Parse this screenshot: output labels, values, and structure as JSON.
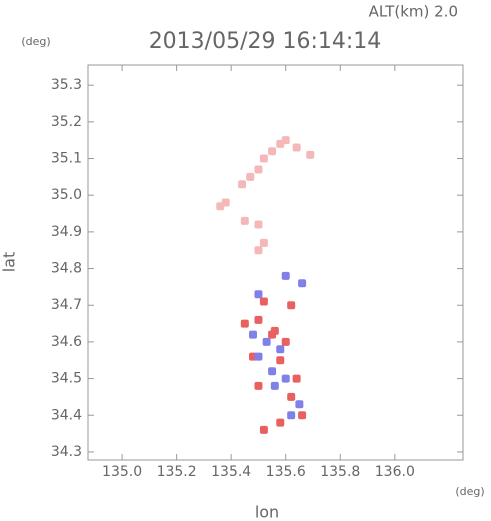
{
  "chart_data": {
    "type": "scatter",
    "title": "2013/05/29 16:14:14",
    "subtitle": "ALT(km) 2.0",
    "x_label": "lon",
    "y_label": "lat",
    "x_unit": "(deg)",
    "y_unit": "(deg)",
    "xlim": [
      134.875,
      136.25
    ],
    "ylim": [
      34.278,
      35.355
    ],
    "xticks": [
      {
        "value": 135,
        "label": "135.0"
      },
      135.2,
      135.4,
      135.6,
      135.8,
      {
        "value": 136,
        "label": "136.0"
      }
    ],
    "yticks": [
      34.3,
      34.4,
      34.5,
      34.6,
      34.7,
      34.8,
      34.9,
      {
        "value": 35,
        "label": "35.0"
      },
      35.1,
      35.2,
      35.3
    ],
    "series": [
      {
        "color": "#f4b8b8",
        "x": [
          135.58,
          135.55,
          135.6,
          135.52,
          135.5,
          135.47,
          135.44,
          135.69,
          135.64,
          135.38,
          135.45,
          135.5,
          135.52,
          135.5,
          135.36
        ],
        "values": [
          35.14,
          35.12,
          35.15,
          35.1,
          35.07,
          35.05,
          35.03,
          35.11,
          35.13,
          34.98,
          34.93,
          34.92,
          34.87,
          34.85,
          34.97
        ]
      },
      {
        "color": "#e86060",
        "x": [
          135.52,
          135.5,
          135.56,
          135.6,
          135.62,
          135.48,
          135.58,
          135.5,
          135.64,
          135.52,
          135.55,
          135.45,
          135.62,
          135.66,
          135.58
        ],
        "values": [
          34.71,
          34.66,
          34.63,
          34.6,
          34.7,
          34.56,
          34.55,
          34.48,
          34.5,
          34.36,
          34.62,
          34.65,
          34.45,
          34.4,
          34.38
        ]
      },
      {
        "color": "#8080e8",
        "x": [
          135.5,
          135.53,
          135.58,
          135.48,
          135.6,
          135.56,
          135.65,
          135.62,
          135.55,
          135.6,
          135.66,
          135.5
        ],
        "values": [
          34.73,
          34.6,
          34.58,
          34.62,
          34.5,
          34.48,
          34.43,
          34.4,
          34.52,
          34.78,
          34.76,
          34.56
        ]
      }
    ]
  }
}
